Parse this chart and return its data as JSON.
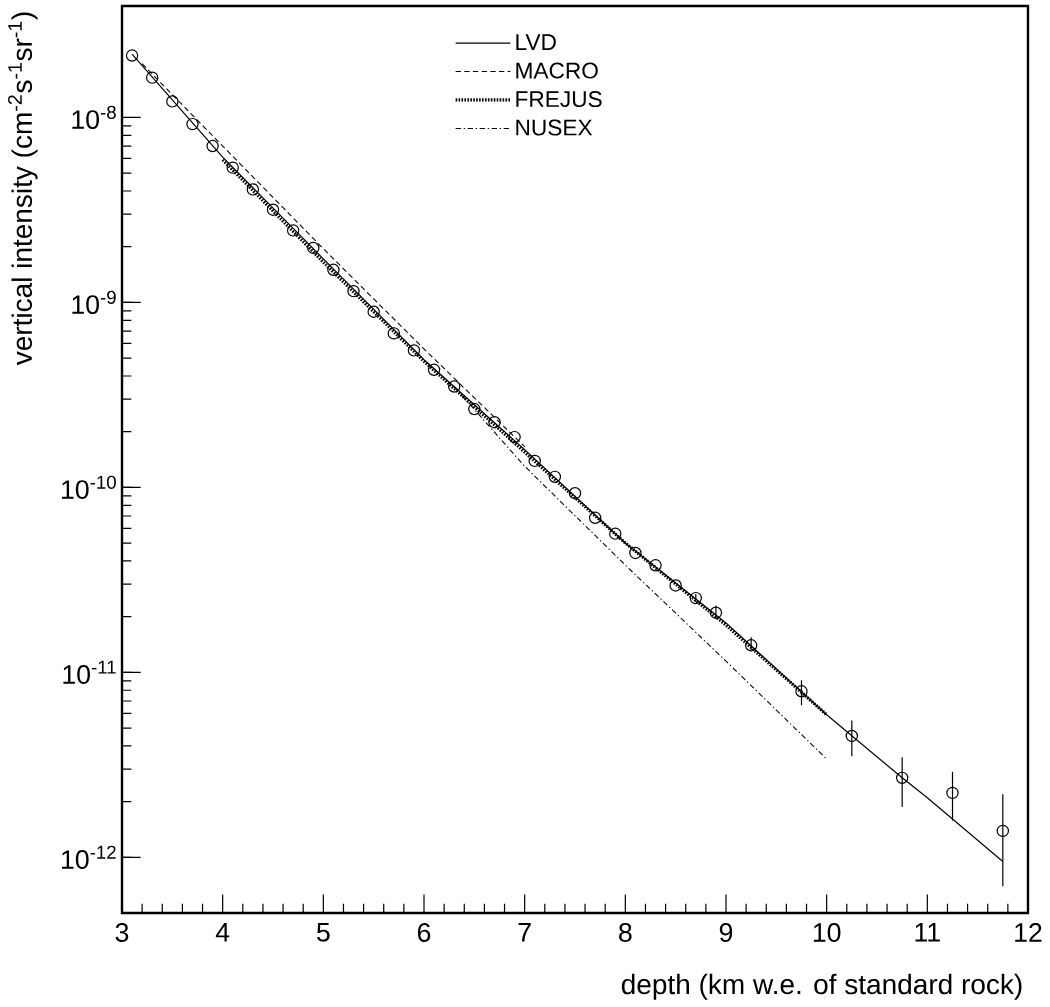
{
  "chart_data": {
    "type": "line",
    "log": "y",
    "xlabel": "depth (km w.e. of standard rock)",
    "ylabel": "vertical intensity (cm$^{-2}$s$^{-1}$sr$^{-1}$)",
    "xlim": [
      3,
      12
    ],
    "ylim": [
      5e-13,
      4e-08
    ],
    "xticks": [
      3,
      4,
      5,
      6,
      7,
      8,
      9,
      10,
      11,
      12
    ],
    "yticks": [
      {
        "value": 1e-12,
        "label": "10$^{-12}$"
      },
      {
        "value": 1e-11,
        "label": "10$^{-11}$"
      },
      {
        "value": 1e-10,
        "label": "10$^{-10}$"
      },
      {
        "value": 1e-09,
        "label": "10$^{-9}$"
      },
      {
        "value": 1e-08,
        "label": "10$^{-8}$"
      }
    ],
    "legend": "top",
    "series": [
      {
        "name": "LVD",
        "type": "line",
        "line_style": "solid",
        "color": "#000000",
        "x": [
          3.1,
          4,
          5,
          6,
          7,
          8,
          9,
          10,
          10.75,
          11,
          11.75
        ],
        "values": [
          2.2e-08,
          6.1e-09,
          1.72e-09,
          4.9e-10,
          1.6e-10,
          5e-11,
          1.85e-11,
          5.9e-12,
          2.69e-12,
          2.1e-12,
          9.5e-13
        ]
      },
      {
        "name": "MACRO",
        "type": "line",
        "line_style": "dashed",
        "color": "#000000",
        "x": [
          3.2,
          4,
          5,
          6,
          7
        ],
        "values": [
          1.95e-08,
          7e-09,
          1.95e-09,
          5.6e-10,
          1.66e-10
        ]
      },
      {
        "name": "FREJUS",
        "type": "line",
        "line_style": "dotted",
        "color": "#000000",
        "x": [
          4,
          5,
          6,
          7,
          8,
          9,
          10
        ],
        "values": [
          5.9e-09,
          1.65e-09,
          4.8e-10,
          1.55e-10,
          5e-11,
          1.8e-11,
          5.9e-12
        ]
      },
      {
        "name": "NUSEX",
        "type": "line",
        "line_style": "dashdot",
        "color": "#000000",
        "x": [
          6.3,
          7,
          8,
          9,
          10
        ],
        "values": [
          3.5e-10,
          1.3e-10,
          3.8e-11,
          1.15e-11,
          3.4e-12
        ]
      },
      {
        "type": "scatter",
        "marker": "circle",
        "color": "#000000",
        "x": [
          3.1,
          3.3,
          3.5,
          3.7,
          3.9,
          4.1,
          4.3,
          4.5,
          4.7,
          4.9,
          5.1,
          5.3,
          5.5,
          5.7,
          5.9,
          6.1,
          6.3,
          6.5,
          6.7,
          6.9,
          7.1,
          7.3,
          7.5,
          7.7,
          7.9,
          8.1,
          8.3,
          8.5,
          8.7,
          8.9,
          9.25,
          9.75,
          10.25,
          10.75,
          11.25,
          11.75
        ],
        "values": [
          2.16e-08,
          1.64e-08,
          1.22e-08,
          9.2e-09,
          7e-09,
          5.35e-09,
          4.08e-09,
          3.17e-09,
          2.45e-09,
          1.97e-09,
          1.5e-09,
          1.15e-09,
          8.9e-10,
          6.8e-10,
          5.5e-10,
          4.32e-10,
          3.51e-10,
          2.65e-10,
          2.25e-10,
          1.87e-10,
          1.39e-10,
          1.14e-10,
          9.3e-11,
          6.85e-11,
          5.62e-11,
          4.42e-11,
          3.79e-11,
          2.95e-11,
          2.52e-11,
          2.1e-11,
          1.4e-11,
          7.9e-12,
          4.53e-12,
          2.69e-12,
          2.23e-12,
          1.39e-12
        ],
        "errors": [
          null,
          null,
          null,
          null,
          null,
          null,
          null,
          null,
          null,
          null,
          null,
          null,
          null,
          null,
          null,
          null,
          null,
          null,
          null,
          null,
          null,
          null,
          null,
          null,
          null,
          null,
          null,
          null,
          [
            2.4e-11,
            2.65e-11
          ],
          [
            1.95e-11,
            2.3e-11
          ],
          [
            1.32e-11,
            1.55e-11
          ],
          [
            6.64e-12,
            9.06e-12
          ],
          [
            3.52e-12,
            5.5e-12
          ],
          [
            1.87e-12,
            3.48e-12
          ],
          [
            1.58e-12,
            2.9e-12
          ],
          [
            6.97e-13,
            2.19e-12
          ]
        ]
      }
    ]
  }
}
